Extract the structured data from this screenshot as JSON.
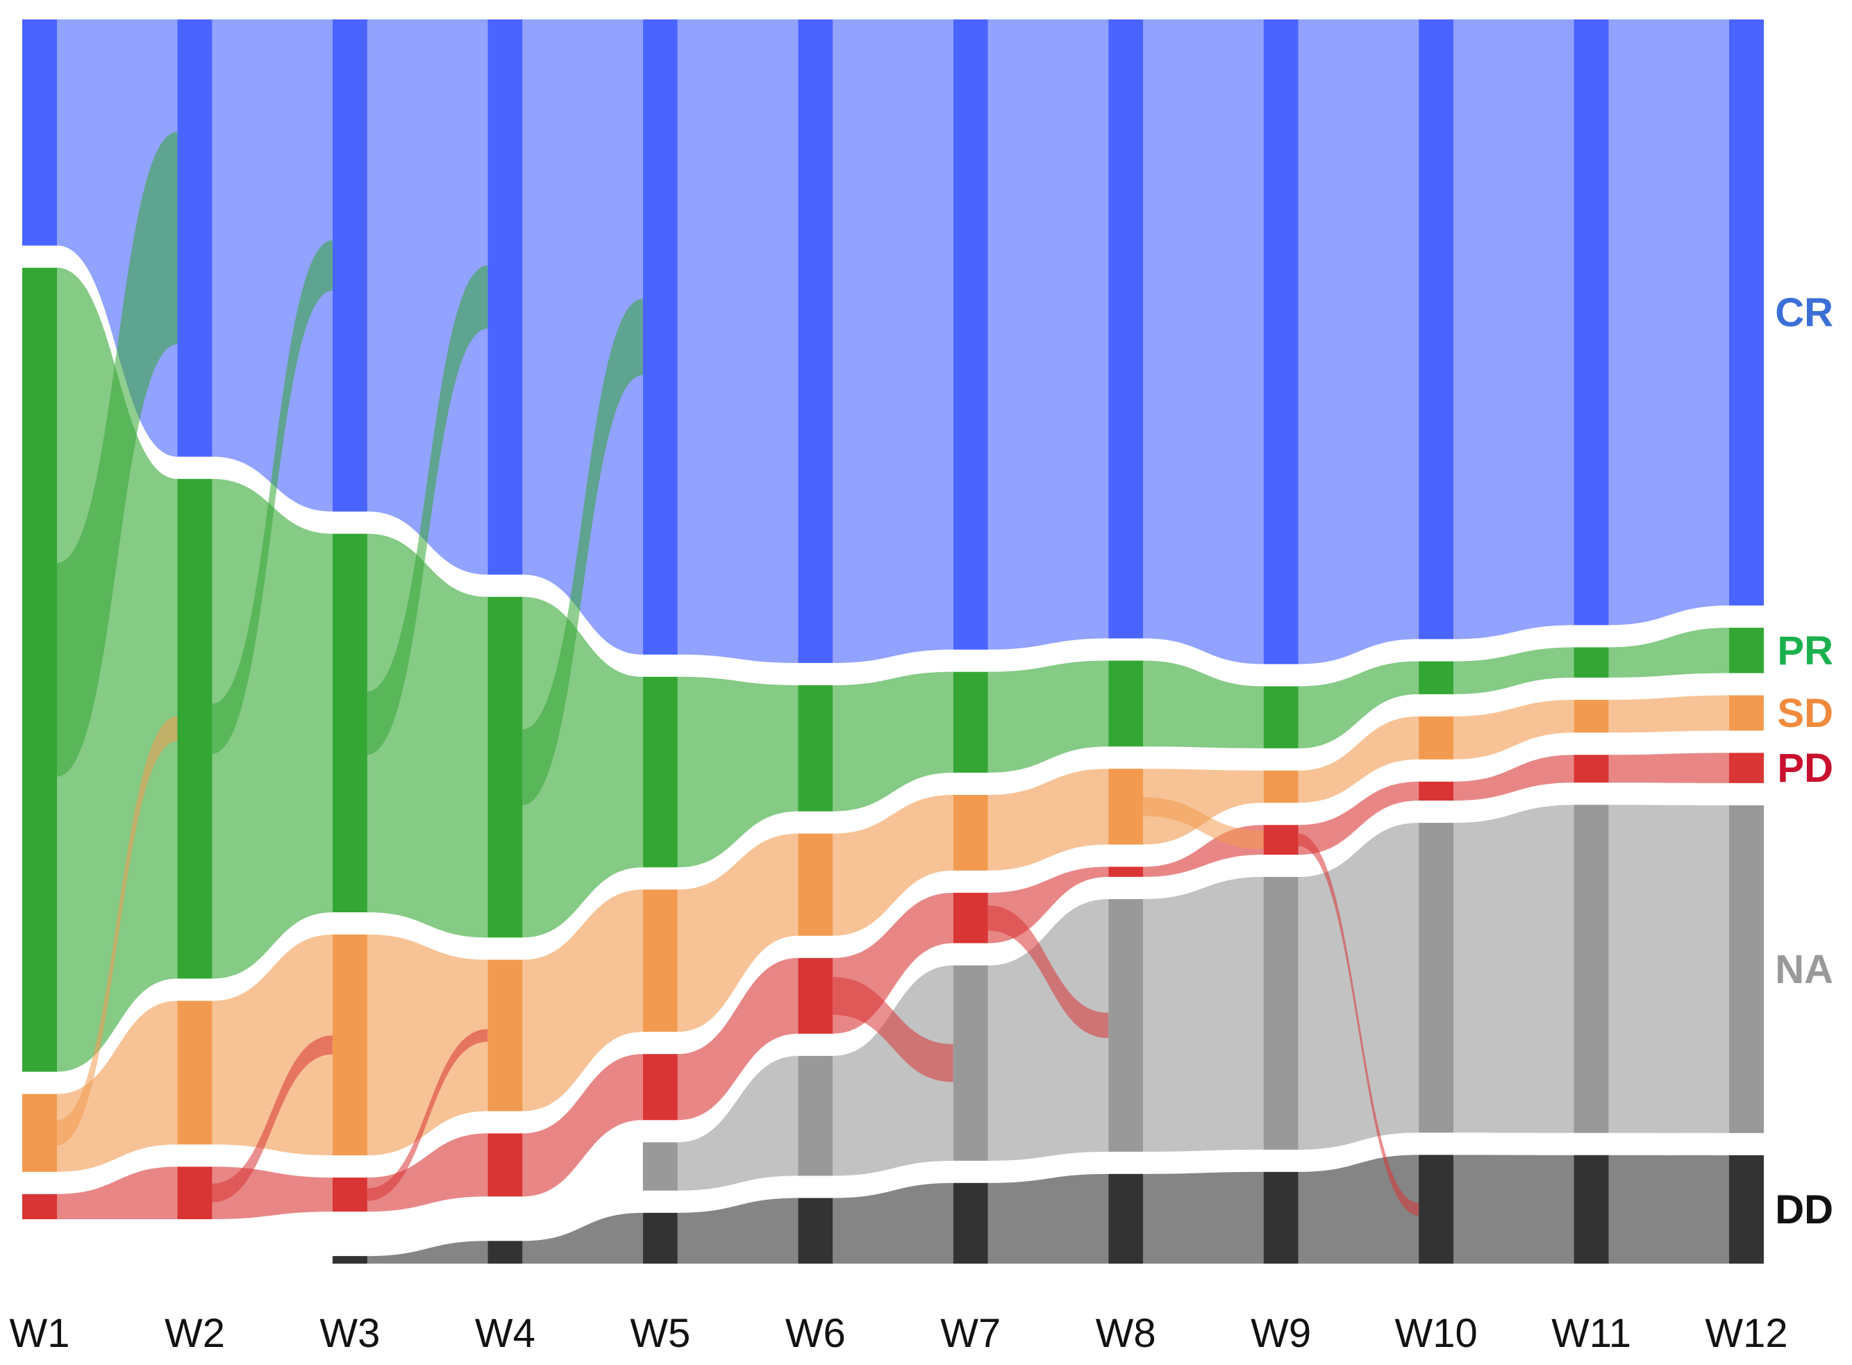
{
  "chart_data": {
    "type": "sankey",
    "title": "",
    "colors": {
      "CR": "#4a64ff",
      "PR": "#34a634",
      "SD": "#f29b50",
      "PD": "#d93535",
      "NA": "#999999",
      "DD": "#333333",
      "CR_label": "#3b6fd6",
      "PR_label": "#1bb04e",
      "SD_label": "#f08a3c",
      "PD_label": "#c8102e",
      "NA_label": "#999999",
      "DD_label": "#111111"
    },
    "states": [
      "CR",
      "PR",
      "SD",
      "PD",
      "NA",
      "DD"
    ],
    "state_labels": {
      "CR": "CR",
      "PR": "PR",
      "SD": "SD",
      "PD": "PD",
      "NA": "NA",
      "DD": "DD"
    },
    "weeks": [
      "W1",
      "W2",
      "W3",
      "W4",
      "W5",
      "W6",
      "W7",
      "W8",
      "W9",
      "W10",
      "W11",
      "W12"
    ],
    "counts_percent": [
      {
        "CR": 18,
        "PR": 64,
        "SD": 6.2,
        "PD": 2,
        "NA": 0,
        "DD": 0
      },
      {
        "CR": 35,
        "PR": 40,
        "SD": 11.5,
        "PD": 4.2,
        "NA": 0,
        "DD": 0
      },
      {
        "CR": 39,
        "PR": 30,
        "SD": 17.5,
        "PD": 2.7,
        "NA": 0,
        "DD": 0.6
      },
      {
        "CR": 44,
        "PR": 27,
        "SD": 12,
        "PD": 5,
        "NA": 0,
        "DD": 1.8
      },
      {
        "CR": 50,
        "PR": 15,
        "SD": 11.2,
        "PD": 5.2,
        "NA": 3.8,
        "DD": 4
      },
      {
        "CR": 51,
        "PR": 10,
        "SD": 8.1,
        "PD": 6,
        "NA": 9.5,
        "DD": 5.2
      },
      {
        "CR": 50,
        "PR": 8,
        "SD": 6,
        "PD": 4,
        "NA": 15.5,
        "DD": 6.4
      },
      {
        "CR": 49,
        "PR": 6.8,
        "SD": 6,
        "PD": 0.8,
        "NA": 20,
        "DD": 7.1
      },
      {
        "CR": 52,
        "PR": 5,
        "SD": 2.6,
        "PD": 2.4,
        "NA": 22,
        "DD": 7.4
      },
      {
        "CR": 49,
        "PR": 2.6,
        "SD": 3.4,
        "PD": 1.5,
        "NA": 24.5,
        "DD": 8.6
      },
      {
        "CR": 48,
        "PR": 2.4,
        "SD": 2.6,
        "PD": 2.2,
        "NA": 26,
        "DD": 8.6
      },
      {
        "CR": 46.5,
        "PR": 3.6,
        "SD": 2.8,
        "PD": 2.4,
        "NA": 26,
        "DD": 8.6
      }
    ],
    "flows": [
      [
        {
          "from": "PR",
          "to": "CR",
          "value": 17
        },
        {
          "from": "SD",
          "to": "PR",
          "value": 2
        },
        {
          "from": "PD",
          "to": "PD",
          "value": 1
        }
      ],
      [
        {
          "from": "PR",
          "to": "CR",
          "value": 4
        },
        {
          "from": "SD",
          "to": "SD",
          "value": 6
        },
        {
          "from": "PD",
          "to": "SD",
          "value": 1.5
        }
      ],
      [
        {
          "from": "PR",
          "to": "CR",
          "value": 5
        },
        {
          "from": "SD",
          "to": "SD",
          "value": 10
        },
        {
          "from": "PD",
          "to": "SD",
          "value": 1
        }
      ],
      [
        {
          "from": "PR",
          "to": "CR",
          "value": 6
        },
        {
          "from": "SD",
          "to": "SD",
          "value": 7
        },
        {
          "from": "PD",
          "to": "PD",
          "value": 2.5
        }
      ],
      [
        {
          "from": "PR",
          "to": "PR",
          "value": 8
        },
        {
          "from": "SD",
          "to": "SD",
          "value": 5
        },
        {
          "from": "PD",
          "to": "PD",
          "value": 3
        }
      ],
      [
        {
          "from": "PR",
          "to": "PR",
          "value": 5
        },
        {
          "from": "SD",
          "to": "SD",
          "value": 4
        },
        {
          "from": "PD",
          "to": "NA",
          "value": 3
        }
      ],
      [
        {
          "from": "PR",
          "to": "PR",
          "value": 5
        },
        {
          "from": "SD",
          "to": "SD",
          "value": 4
        },
        {
          "from": "PD",
          "to": "NA",
          "value": 2
        }
      ],
      [
        {
          "from": "PR",
          "to": "PR",
          "value": 4
        },
        {
          "from": "SD",
          "to": "SD",
          "value": 2
        },
        {
          "from": "SD",
          "to": "PD",
          "value": 1.5
        }
      ],
      [
        {
          "from": "PR",
          "to": "PR",
          "value": 2
        },
        {
          "from": "SD",
          "to": "SD",
          "value": 2
        },
        {
          "from": "PD",
          "to": "DD",
          "value": 1
        }
      ],
      [
        {
          "from": "PR",
          "to": "PR",
          "value": 2
        },
        {
          "from": "SD",
          "to": "SD",
          "value": 2
        },
        {
          "from": "PD",
          "to": "PD",
          "value": 1
        }
      ],
      [
        {
          "from": "PR",
          "to": "PR",
          "value": 2
        },
        {
          "from": "SD",
          "to": "SD",
          "value": 2
        },
        {
          "from": "PD",
          "to": "PD",
          "value": 2
        }
      ]
    ],
    "legend_position": "right",
    "grid": false
  }
}
